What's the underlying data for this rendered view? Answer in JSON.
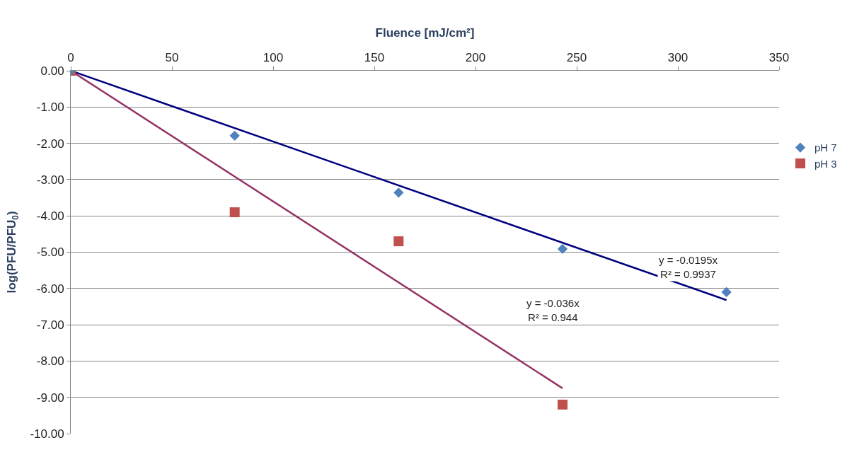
{
  "chart_data": {
    "type": "scatter",
    "xlabel": "Fluence [mJ/cm²]",
    "ylabel": "log(PFU/PFU$_{0}$)",
    "xlim": [
      0,
      350
    ],
    "xticks": [
      0,
      50,
      100,
      150,
      200,
      250,
      300,
      350
    ],
    "ylim": [
      -10,
      0
    ],
    "yticks": [
      {
        "value": 0,
        "label": "0.00"
      },
      {
        "value": -1,
        "label": "-1.00"
      },
      {
        "value": -2,
        "label": "-2.00"
      },
      {
        "value": -3,
        "label": "-3.00"
      },
      {
        "value": -4,
        "label": "-4.00"
      },
      {
        "value": -5,
        "label": "-5.00"
      },
      {
        "value": -6,
        "label": "-6.00"
      },
      {
        "value": -7,
        "label": "-7.00"
      },
      {
        "value": -8,
        "label": "-8.00"
      },
      {
        "value": -9,
        "label": "-9.00"
      },
      {
        "value": -10,
        "label": "-10.00"
      }
    ],
    "grid": "y",
    "legend": "right",
    "series": [
      {
        "type": "line",
        "color": "#000080",
        "x": [
          0,
          324
        ],
        "values": [
          0,
          -6.32
        ]
      },
      {
        "type": "line",
        "color": "#953365",
        "x": [
          0,
          243
        ],
        "values": [
          0,
          -8.75
        ]
      },
      {
        "name": "pH 3",
        "color": "#c0504d",
        "marker": "square",
        "x": [
          0,
          81,
          162,
          243
        ],
        "values": [
          0,
          -3.9,
          -4.7,
          -9.2
        ]
      },
      {
        "name": "pH 7",
        "color": "#4f81bd",
        "marker": "diamond",
        "x": [
          0,
          81,
          162,
          243,
          324
        ],
        "values": [
          0,
          -1.79,
          -3.36,
          -4.91,
          -6.1
        ]
      }
    ],
    "annotations": [
      "y = -0.0195x\nR² = 0.9937",
      "y = -0.036x\nR² = 0.944"
    ]
  }
}
